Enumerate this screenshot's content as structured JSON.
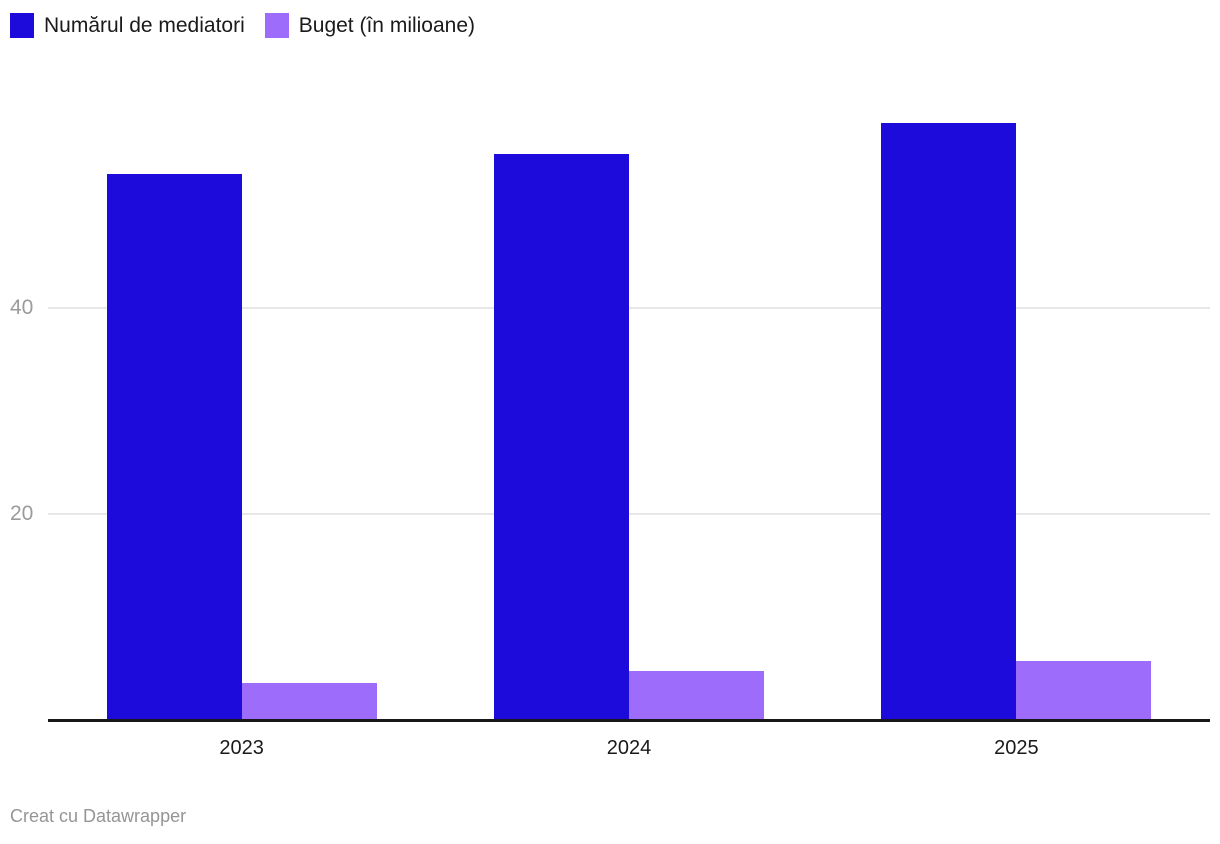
{
  "chart_data": {
    "type": "bar",
    "categories": [
      "2023",
      "2024",
      "2025"
    ],
    "series": [
      {
        "name": "Numărul de mediatori",
        "color": "#1d0bdb",
        "values": [
          53,
          55,
          58
        ]
      },
      {
        "name": "Buget (în milioane)",
        "color": "#9e6cfa",
        "values": [
          3.6,
          4.8,
          5.7
        ]
      }
    ],
    "title": "",
    "xlabel": "",
    "ylabel": "",
    "ylim": [
      0,
      62
    ],
    "yticks": [
      20,
      40
    ],
    "grid": true,
    "legend_position": "top-left",
    "colors": {
      "gridline": "#e8e8e8",
      "axis": "#18181b",
      "tick_label": "#9b9b9b",
      "category_label": "#1a1a1a",
      "legend_text": "#1a1a1a",
      "footer_text": "#959595"
    }
  },
  "footer": {
    "text": "Creat cu Datawrapper"
  }
}
